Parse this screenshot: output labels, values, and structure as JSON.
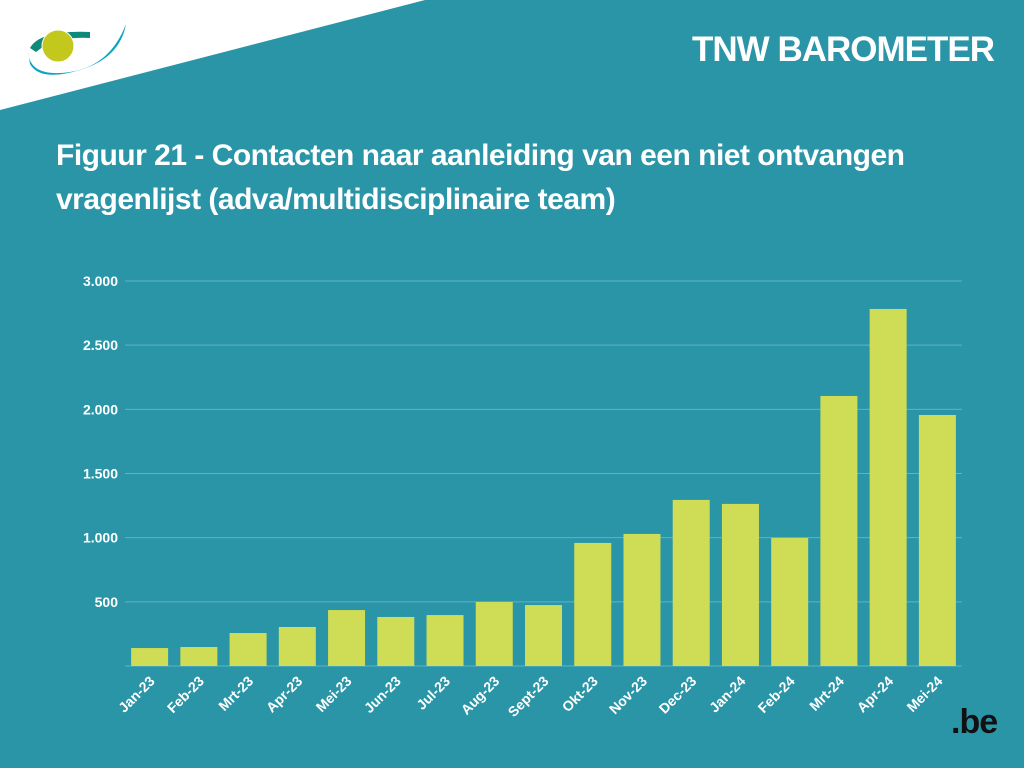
{
  "brand": "TNW BAROMETER",
  "title": "Figuur 21 - Contacten naar aanleiding van een niet ontvangen vragenlijst (adva/multidisciplinaire team)",
  "logo_text": ".be",
  "colors": {
    "background": "#2b95a8",
    "bar": "#cfdc55",
    "grid": "#5fb3c2"
  },
  "chart_data": {
    "type": "bar",
    "title": "Figuur 21 - Contacten naar aanleiding van een niet ontvangen vragenlijst (adva/multidisciplinaire team)",
    "xlabel": "",
    "ylabel": "",
    "categories": [
      "Jan-23",
      "Feb-23",
      "Mrt-23",
      "Apr-23",
      "Mei-23",
      "Jun-23",
      "Jul-23",
      "Aug-23",
      "Sept-23",
      "Okt-23",
      "Nov-23",
      "Dec-23",
      "Jan-24",
      "Feb-24",
      "Mrt-24",
      "Apr-24",
      "Mei-24"
    ],
    "values": [
      140,
      148,
      257,
      304,
      436,
      382,
      397,
      499,
      475,
      959,
      1029,
      1294,
      1263,
      998,
      2104,
      2782,
      1956
    ],
    "ylim": [
      0,
      3000
    ],
    "yticks": [
      500,
      1000,
      1500,
      2000,
      2500,
      3000
    ],
    "ytick_labels": [
      "500",
      "1.000",
      "1.500",
      "2.000",
      "2.500",
      "3.000"
    ],
    "grid": true,
    "legend": "none"
  }
}
